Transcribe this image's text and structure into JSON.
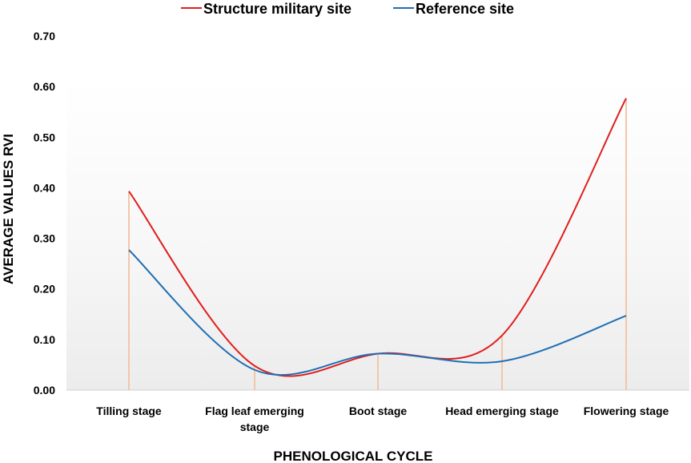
{
  "chart_data": {
    "type": "line",
    "smooth": true,
    "title": "",
    "xlabel": "PHENOLOGICAL CYCLE",
    "ylabel": "AVERAGE VALUES RVI",
    "categories": [
      [
        "Tilling stage"
      ],
      [
        "Flag leaf emerging",
        "stage"
      ],
      [
        "Boot stage"
      ],
      [
        "Head emerging stage"
      ],
      [
        "Flowering stage"
      ]
    ],
    "ylim": [
      0,
      0.7
    ],
    "yticks": [
      "0.00",
      "0.10",
      "0.20",
      "0.30",
      "0.40",
      "0.50",
      "0.60",
      "0.70"
    ],
    "grid": false,
    "background_gradient": true,
    "drop_lines": true,
    "legend_position": "top-center",
    "series": [
      {
        "name": "Structure military site",
        "color": "#e01e1e",
        "values": [
          0.393,
          0.048,
          0.072,
          0.108,
          0.577
        ]
      },
      {
        "name": "Reference site",
        "color": "#1f6fb4",
        "values": [
          0.277,
          0.04,
          0.072,
          0.057,
          0.147
        ]
      }
    ],
    "drop_line_color": "#f2c6a8",
    "axis_color": "#d0d0d0"
  }
}
